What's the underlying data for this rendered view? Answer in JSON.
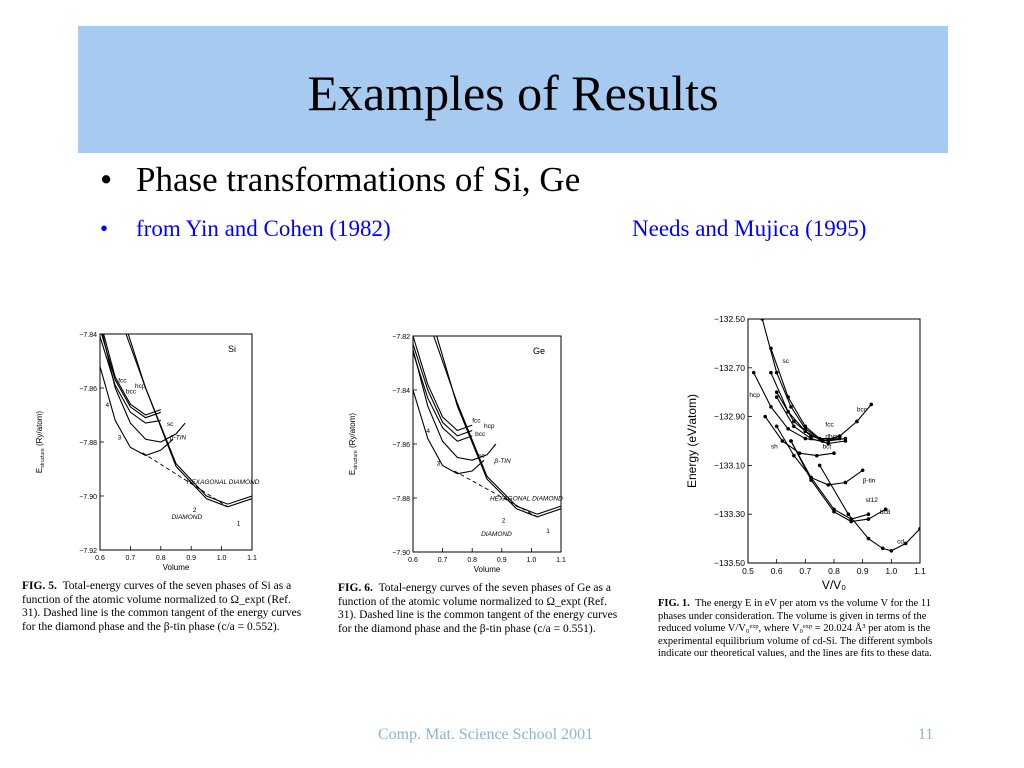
{
  "slide": {
    "title": "Examples of Results",
    "bullet_main": "Phase transformations of Si, Ge",
    "bullet_sub_left": "from Yin and Cohen (1982)",
    "bullet_sub_right": "Needs and Mujica (1995)",
    "bullet_glyph": "•",
    "footer_text": "Comp. Mat. Science School 2001",
    "page_number": "11"
  },
  "colors": {
    "title_band": "#a6caf0",
    "link_blue": "#0000ff",
    "footer": "#8bb3d9"
  },
  "chart_data": [
    {
      "type": "line",
      "panel_label": "Si",
      "xlabel": "Volume",
      "ylabel": "E",
      "ylabel_sub": "structure",
      "ylabel_unit": "(Ry/atom)",
      "xlim": [
        0.6,
        1.1
      ],
      "ylim": [
        -7.92,
        -7.84
      ],
      "xticks": [
        0.6,
        0.7,
        0.8,
        0.9,
        1.0,
        1.1
      ],
      "xtick_labels": [
        "0.6",
        "0.7",
        "0.8",
        "0.9",
        "1.0",
        "1.1"
      ],
      "yticks": [
        -7.84,
        -7.86,
        -7.88,
        -7.9,
        -7.92
      ],
      "ytick_labels": [
        "−7.84",
        "−7.86",
        "−7.88",
        "−7.90",
        "−7.92"
      ],
      "series": [
        {
          "name": "fcc",
          "x": [
            0.6,
            0.65,
            0.7,
            0.75,
            0.8
          ],
          "y": [
            -7.835,
            -7.856,
            -7.866,
            -7.87,
            -7.868
          ]
        },
        {
          "name": "hcp",
          "x": [
            0.6,
            0.65,
            0.7,
            0.75,
            0.8
          ],
          "y": [
            -7.838,
            -7.857,
            -7.867,
            -7.871,
            -7.869
          ]
        },
        {
          "name": "bcc",
          "x": [
            0.6,
            0.65,
            0.7,
            0.75,
            0.8
          ],
          "y": [
            -7.841,
            -7.859,
            -7.869,
            -7.873,
            -7.872
          ]
        },
        {
          "name": "sc",
          "x": [
            0.6,
            0.65,
            0.7,
            0.75,
            0.8,
            0.85,
            0.88
          ],
          "y": [
            -7.836,
            -7.86,
            -7.873,
            -7.879,
            -7.88,
            -7.877,
            -7.873
          ]
        },
        {
          "name": "β-TIN",
          "x": [
            0.6,
            0.65,
            0.7,
            0.75,
            0.8,
            0.84
          ],
          "y": [
            -7.852,
            -7.872,
            -7.882,
            -7.885,
            -7.883,
            -7.879
          ]
        },
        {
          "name": "HEXAGONAL DIAMOND",
          "x": [
            0.66,
            0.75,
            0.85,
            0.95,
            1.02,
            1.1
          ],
          "y": [
            -7.832,
            -7.86,
            -7.888,
            -7.9,
            -7.903,
            -7.9
          ]
        },
        {
          "name": "DIAMOND",
          "x": [
            0.67,
            0.75,
            0.85,
            0.95,
            1.02,
            1.1
          ],
          "y": [
            -7.832,
            -7.86,
            -7.889,
            -7.901,
            -7.904,
            -7.901
          ]
        },
        {
          "name": "common tangent",
          "x": [
            0.74,
            1.02
          ],
          "y": [
            -7.884,
            -7.904
          ]
        }
      ],
      "curve_numbers": [
        "1",
        "2",
        "3",
        "4"
      ],
      "caption_label": "FIG. 5.",
      "caption": "Total-energy curves of the seven phases of Si as a function of the atomic volume normalized to Ω_expt (Ref. 31). Dashed line is the common tangent of the energy curves for the diamond phase and the β-tin phase (c/a = 0.552)."
    },
    {
      "type": "line",
      "panel_label": "Ge",
      "xlabel": "Volume",
      "ylabel": "E",
      "ylabel_sub": "structure",
      "ylabel_unit": "(Ry/atom)",
      "xlim": [
        0.6,
        1.1
      ],
      "ylim": [
        -7.9,
        -7.82
      ],
      "xticks": [
        0.6,
        0.7,
        0.8,
        0.9,
        1.0,
        1.1
      ],
      "xtick_labels": [
        "0.6",
        "0.7",
        "0.8",
        "0.9",
        "1.0",
        "1.1"
      ],
      "yticks": [
        -7.82,
        -7.84,
        -7.86,
        -7.88,
        -7.9
      ],
      "ytick_labels": [
        "−7.82",
        "−7.84",
        "−7.86",
        "−7.88",
        "−7.90"
      ],
      "series": [
        {
          "name": "fcc",
          "x": [
            0.6,
            0.65,
            0.7,
            0.75,
            0.8
          ],
          "y": [
            -7.82,
            -7.838,
            -7.85,
            -7.855,
            -7.853
          ]
        },
        {
          "name": "hcp",
          "x": [
            0.6,
            0.65,
            0.7,
            0.75,
            0.8
          ],
          "y": [
            -7.823,
            -7.84,
            -7.852,
            -7.857,
            -7.855
          ]
        },
        {
          "name": "bcc",
          "x": [
            0.6,
            0.65,
            0.7,
            0.75,
            0.8
          ],
          "y": [
            -7.826,
            -7.843,
            -7.854,
            -7.859,
            -7.857
          ]
        },
        {
          "name": "sc",
          "x": [
            0.6,
            0.65,
            0.7,
            0.75,
            0.8,
            0.85,
            0.88
          ],
          "y": [
            -7.825,
            -7.846,
            -7.859,
            -7.865,
            -7.866,
            -7.864,
            -7.86
          ]
        },
        {
          "name": "β-TIN",
          "x": [
            0.6,
            0.65,
            0.7,
            0.75,
            0.8,
            0.84
          ],
          "y": [
            -7.84,
            -7.858,
            -7.868,
            -7.871,
            -7.87,
            -7.866
          ]
        },
        {
          "name": "HEXAGONAL DIAMOND",
          "x": [
            0.67,
            0.75,
            0.85,
            0.95,
            1.02,
            1.1
          ],
          "y": [
            -7.82,
            -7.845,
            -7.872,
            -7.883,
            -7.886,
            -7.883
          ]
        },
        {
          "name": "DIAMOND",
          "x": [
            0.68,
            0.75,
            0.85,
            0.95,
            1.02,
            1.1
          ],
          "y": [
            -7.82,
            -7.846,
            -7.873,
            -7.884,
            -7.887,
            -7.884
          ]
        },
        {
          "name": "common tangent",
          "x": [
            0.74,
            1.02
          ],
          "y": [
            -7.87,
            -7.887
          ]
        }
      ],
      "curve_numbers": [
        "1",
        "2",
        "3",
        "4"
      ],
      "caption_label": "FIG. 6.",
      "caption": "Total-energy curves of the seven phases of Ge as a function of the atomic volume normalized to Ω_expt (Ref. 31). Dashed line is the common tangent of the energy curves for the diamond phase and the β-tin phase (c/a = 0.551)."
    },
    {
      "type": "scatter",
      "panel_label": "",
      "xlabel": "V/V₀",
      "ylabel": "Energy (eV/atom)",
      "xlim": [
        0.5,
        1.1
      ],
      "ylim": [
        -133.5,
        -132.5
      ],
      "xticks": [
        0.5,
        0.6,
        0.7,
        0.8,
        0.9,
        1.0,
        1.1
      ],
      "xtick_labels": [
        "0.5",
        "0.6",
        "0.7",
        "0.8",
        "0.9",
        "1.0",
        "1.1"
      ],
      "yticks": [
        -132.5,
        -132.7,
        -132.9,
        -133.1,
        -133.3,
        -133.5
      ],
      "ytick_labels": [
        "−132.50",
        "−132.70",
        "−132.90",
        "−133.10",
        "−133.30",
        "−133.50"
      ],
      "series": [
        {
          "name": "sc",
          "x": [
            0.55,
            0.6,
            0.65,
            0.7,
            0.75,
            0.8
          ],
          "y": [
            -132.5,
            -132.72,
            -132.86,
            -132.95,
            -132.99,
            -132.99
          ]
        },
        {
          "name": "hcp",
          "x": [
            0.52,
            0.58,
            0.64,
            0.7,
            0.76,
            0.82
          ],
          "y": [
            -132.72,
            -132.86,
            -132.95,
            -132.99,
            -133.0,
            -132.98
          ]
        },
        {
          "name": "bcc",
          "x": [
            0.58,
            0.64,
            0.7,
            0.76,
            0.82,
            0.88,
            0.93
          ],
          "y": [
            -132.62,
            -132.82,
            -132.94,
            -133.0,
            -132.98,
            -132.92,
            -132.85
          ]
        },
        {
          "name": "fcc",
          "x": [
            0.58,
            0.64,
            0.7,
            0.76,
            0.82
          ],
          "y": [
            -132.72,
            -132.88,
            -132.96,
            -133.0,
            -132.99
          ]
        },
        {
          "name": "dhcp",
          "x": [
            0.6,
            0.66,
            0.72,
            0.78,
            0.84
          ],
          "y": [
            -132.8,
            -132.92,
            -132.98,
            -133.0,
            -132.99
          ]
        },
        {
          "name": "bct",
          "x": [
            0.6,
            0.66,
            0.72,
            0.78,
            0.84
          ],
          "y": [
            -132.82,
            -132.94,
            -132.99,
            -133.01,
            -133.0
          ]
        },
        {
          "name": "sh",
          "x": [
            0.56,
            0.62,
            0.68,
            0.74,
            0.8
          ],
          "y": [
            -132.9,
            -133.0,
            -133.05,
            -133.06,
            -133.05
          ]
        },
        {
          "name": "β-tin",
          "x": [
            0.6,
            0.66,
            0.72,
            0.78,
            0.84,
            0.9
          ],
          "y": [
            -132.94,
            -133.06,
            -133.15,
            -133.18,
            -133.17,
            -133.12
          ]
        },
        {
          "name": "st12",
          "x": [
            0.65,
            0.72,
            0.8,
            0.86,
            0.92
          ],
          "y": [
            -133.0,
            -133.15,
            -133.28,
            -133.32,
            -133.3
          ]
        },
        {
          "name": "bc8",
          "x": [
            0.65,
            0.72,
            0.8,
            0.86,
            0.92,
            0.98
          ],
          "y": [
            -133.0,
            -133.16,
            -133.29,
            -133.33,
            -133.32,
            -133.28
          ]
        },
        {
          "name": "cd",
          "x": [
            0.75,
            0.85,
            0.92,
            0.97,
            1.0,
            1.05,
            1.1
          ],
          "y": [
            -133.1,
            -133.3,
            -133.4,
            -133.44,
            -133.45,
            -133.42,
            -133.36
          ]
        }
      ],
      "caption_label": "FIG. 1.",
      "caption": "The energy E in eV per atom vs the volume V for the 11 phases under consideration. The volume is given in terms of the reduced volume V/V₀ᵉˣᵖ, where V₀ᵉˣᵖ = 20.024 Å³ per atom is the experimental equilibrium volume of cd-Si. The different symbols indicate our theoretical values, and the lines are fits to these data."
    }
  ]
}
